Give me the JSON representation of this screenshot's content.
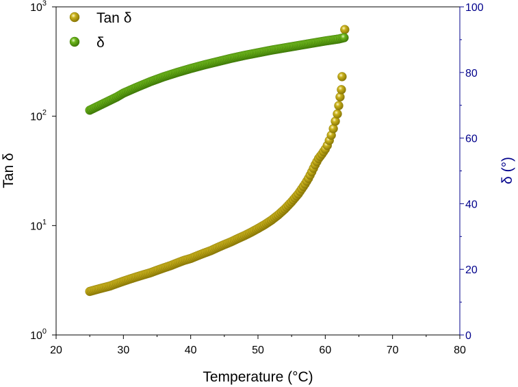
{
  "chart_data": {
    "type": "scatter",
    "title": "",
    "xlabel": "Temperature (°C)",
    "ylabel_left": "Tan δ",
    "ylabel_right": "δ (°)",
    "xlim": [
      20,
      80
    ],
    "ylim_left": [
      1,
      1000
    ],
    "ylim_right": [
      0,
      100
    ],
    "yscale_left": "log",
    "x_ticks": [
      "20",
      "30",
      "40",
      "50",
      "60",
      "70",
      "80"
    ],
    "y_right_ticks": [
      "0",
      "20",
      "40",
      "60",
      "80",
      "100"
    ],
    "y_left_ticks": [
      {
        "base": "10",
        "exp": "0"
      },
      {
        "base": "10",
        "exp": "1"
      },
      {
        "base": "10",
        "exp": "2"
      },
      {
        "base": "10",
        "exp": "3"
      }
    ],
    "legend": [
      "Tan δ",
      "δ"
    ],
    "legend_position": "top-left",
    "series": [
      {
        "name": "Tan δ",
        "axis": "left",
        "color": "#b09a0a",
        "x": [
          25,
          26,
          27,
          28,
          29,
          30,
          31,
          32,
          33,
          34,
          35,
          36,
          37,
          38,
          39,
          40,
          41,
          42,
          43,
          44,
          45,
          46,
          47,
          48,
          49,
          50,
          51,
          52,
          53,
          54,
          55,
          56,
          57,
          57.5,
          58,
          58.5,
          59,
          59.5,
          60,
          60.3,
          60.6,
          60.9,
          61.2,
          61.5,
          61.8,
          62,
          62.2,
          62.4,
          62.5,
          62.9
        ],
        "values": [
          2.5,
          2.6,
          2.7,
          2.8,
          2.95,
          3.1,
          3.25,
          3.4,
          3.55,
          3.7,
          3.9,
          4.1,
          4.3,
          4.55,
          4.8,
          5.0,
          5.3,
          5.6,
          5.9,
          6.3,
          6.7,
          7.1,
          7.6,
          8.1,
          8.7,
          9.4,
          10.2,
          11.2,
          12.5,
          14.2,
          16.5,
          19.5,
          24,
          27,
          31,
          36,
          41,
          45,
          50,
          54,
          60,
          67,
          77,
          90,
          105,
          125,
          150,
          175,
          230,
          620
        ]
      },
      {
        "name": "δ",
        "axis": "right",
        "color": "#5ea00f",
        "x": [
          25,
          26,
          27,
          28,
          29,
          30,
          32,
          34,
          36,
          38,
          40,
          42,
          44,
          46,
          48,
          50,
          52,
          54,
          56,
          58,
          60,
          61,
          62,
          62.8
        ],
        "values": [
          68.5,
          69.5,
          70.5,
          71.5,
          72.5,
          73.7,
          75.5,
          77.2,
          78.7,
          80,
          81.2,
          82.3,
          83.3,
          84.3,
          85.2,
          86,
          86.8,
          87.5,
          88.2,
          88.9,
          89.6,
          89.9,
          90.2,
          90.6
        ]
      }
    ]
  }
}
